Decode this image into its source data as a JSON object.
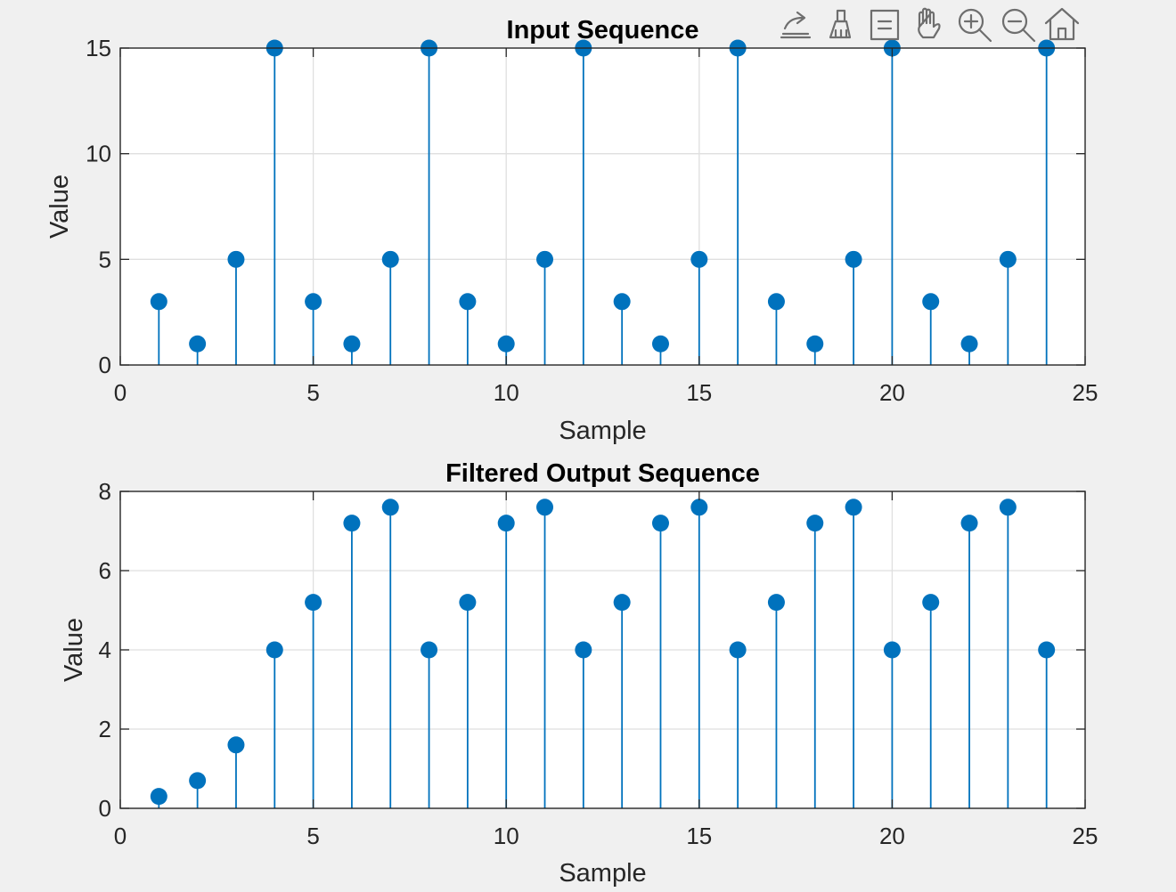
{
  "figure": {
    "background": "#f0f0f0",
    "stem_color": "#0072bd"
  },
  "toolbar": {
    "items": [
      {
        "name": "export-icon"
      },
      {
        "name": "brush-icon"
      },
      {
        "name": "data-tips-icon"
      },
      {
        "name": "pan-hand-icon"
      },
      {
        "name": "zoom-in-icon"
      },
      {
        "name": "zoom-out-icon"
      },
      {
        "name": "home-icon"
      }
    ]
  },
  "chart_data": [
    {
      "type": "stem",
      "title": "Input Sequence",
      "xlabel": "Sample",
      "ylabel": "Value",
      "xlim": [
        0,
        25
      ],
      "ylim": [
        0,
        15
      ],
      "xticks": [
        0,
        5,
        10,
        15,
        20,
        25
      ],
      "yticks": [
        0,
        5,
        10,
        15
      ],
      "grid": true,
      "x": [
        1,
        2,
        3,
        4,
        5,
        6,
        7,
        8,
        9,
        10,
        11,
        12,
        13,
        14,
        15,
        16,
        17,
        18,
        19,
        20,
        21,
        22,
        23,
        24
      ],
      "y": [
        3,
        1,
        5,
        15,
        3,
        1,
        5,
        15,
        3,
        1,
        5,
        15,
        3,
        1,
        5,
        15,
        3,
        1,
        5,
        15,
        3,
        1,
        5,
        15
      ]
    },
    {
      "type": "stem",
      "title": "Filtered Output Sequence",
      "xlabel": "Sample",
      "ylabel": "Value",
      "xlim": [
        0,
        25
      ],
      "ylim": [
        0,
        8
      ],
      "xticks": [
        0,
        5,
        10,
        15,
        20,
        25
      ],
      "yticks": [
        0,
        2,
        4,
        6,
        8
      ],
      "grid": true,
      "x": [
        1,
        2,
        3,
        4,
        5,
        6,
        7,
        8,
        9,
        10,
        11,
        12,
        13,
        14,
        15,
        16,
        17,
        18,
        19,
        20,
        21,
        22,
        23,
        24
      ],
      "y": [
        0.3,
        0.7,
        1.6,
        4,
        5.2,
        7.2,
        7.6,
        4,
        5.2,
        7.2,
        7.6,
        4,
        5.2,
        7.2,
        7.6,
        4,
        5.2,
        7.2,
        7.6,
        4,
        5.2,
        7.2,
        7.6,
        4
      ]
    }
  ]
}
